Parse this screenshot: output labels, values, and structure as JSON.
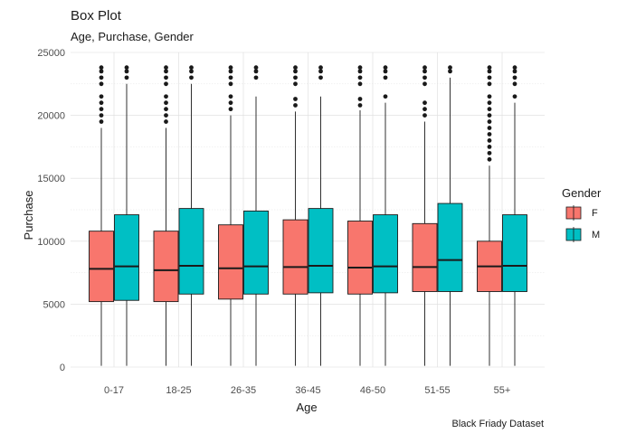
{
  "chart_data": {
    "type": "box",
    "title": "Box Plot",
    "subtitle": "Age, Purchase, Gender",
    "xlabel": "Age",
    "ylabel": "Purchase",
    "caption": "Black Friady Dataset",
    "ylim": [
      0,
      25000
    ],
    "y_ticks": [
      "0",
      "5000",
      "10000",
      "15000",
      "20000",
      "25000"
    ],
    "y_tick_values": [
      0,
      5000,
      10000,
      15000,
      20000,
      25000
    ],
    "categories": [
      "0-17",
      "18-25",
      "26-35",
      "36-45",
      "46-50",
      "51-55",
      "55+"
    ],
    "grid": true,
    "legend_position": "right",
    "legend": {
      "title": "Gender",
      "entries": [
        "F",
        "M"
      ]
    },
    "series": [
      {
        "name": "F",
        "color": "#F8766D",
        "boxes": [
          {
            "lower_whisker": 100,
            "q1": 5200,
            "median": 7800,
            "q3": 10800,
            "upper_whisker": 19000,
            "outliers": [
              19500,
              20000,
              20500,
              21000,
              21500,
              22500,
              23000,
              23500,
              23800
            ]
          },
          {
            "lower_whisker": 100,
            "q1": 5200,
            "median": 7700,
            "q3": 10800,
            "upper_whisker": 19000,
            "outliers": [
              19500,
              20000,
              20500,
              21000,
              21500,
              22500,
              23000,
              23500,
              23800
            ]
          },
          {
            "lower_whisker": 100,
            "q1": 5400,
            "median": 7850,
            "q3": 11300,
            "upper_whisker": 20000,
            "outliers": [
              20500,
              21000,
              21500,
              22500,
              23000,
              23500,
              23800
            ]
          },
          {
            "lower_whisker": 100,
            "q1": 5800,
            "median": 7950,
            "q3": 11700,
            "upper_whisker": 20300,
            "outliers": [
              20800,
              21300,
              22500,
              23000,
              23500,
              23800
            ]
          },
          {
            "lower_whisker": 100,
            "q1": 5800,
            "median": 7900,
            "q3": 11600,
            "upper_whisker": 20400,
            "outliers": [
              20800,
              21300,
              22500,
              23000,
              23500,
              23800
            ]
          },
          {
            "lower_whisker": 100,
            "q1": 6000,
            "median": 7950,
            "q3": 11400,
            "upper_whisker": 19500,
            "outliers": [
              20000,
              20500,
              21000,
              22500,
              23000,
              23500,
              23800
            ]
          },
          {
            "lower_whisker": 100,
            "q1": 6000,
            "median": 8000,
            "q3": 10000,
            "upper_whisker": 16000,
            "outliers": [
              16500,
              17000,
              17500,
              18000,
              18500,
              19000,
              19500,
              20000,
              20500,
              21000,
              21500,
              22500,
              23000,
              23500,
              23800
            ]
          }
        ]
      },
      {
        "name": "M",
        "color": "#00BFC4",
        "boxes": [
          {
            "lower_whisker": 100,
            "q1": 5300,
            "median": 8000,
            "q3": 12100,
            "upper_whisker": 22500,
            "outliers": [
              23000,
              23500,
              23800
            ]
          },
          {
            "lower_whisker": 100,
            "q1": 5800,
            "median": 8050,
            "q3": 12600,
            "upper_whisker": 22500,
            "outliers": [
              23000,
              23500,
              23800
            ]
          },
          {
            "lower_whisker": 100,
            "q1": 5800,
            "median": 8000,
            "q3": 12400,
            "upper_whisker": 21500,
            "outliers": [
              23000,
              23500,
              23800
            ]
          },
          {
            "lower_whisker": 100,
            "q1": 5900,
            "median": 8050,
            "q3": 12600,
            "upper_whisker": 21500,
            "outliers": [
              23000,
              23500,
              23800
            ]
          },
          {
            "lower_whisker": 100,
            "q1": 5900,
            "median": 8000,
            "q3": 12100,
            "upper_whisker": 21000,
            "outliers": [
              21500,
              23000,
              23500,
              23800
            ]
          },
          {
            "lower_whisker": 100,
            "q1": 6000,
            "median": 8500,
            "q3": 13000,
            "upper_whisker": 23000,
            "outliers": [
              23500,
              23800
            ]
          },
          {
            "lower_whisker": 100,
            "q1": 6000,
            "median": 8050,
            "q3": 12100,
            "upper_whisker": 21000,
            "outliers": [
              21500,
              22500,
              23000,
              23500,
              23800
            ]
          }
        ]
      }
    ]
  }
}
